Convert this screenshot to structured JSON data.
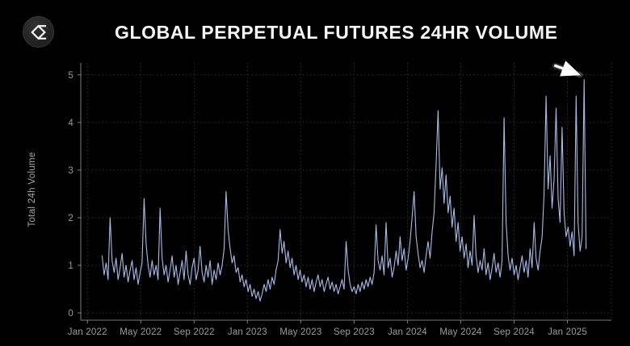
{
  "header": {
    "title": "GLOBAL PERPETUAL FUTURES 24HR VOLUME",
    "logo_icon": "velo-sigma-logo"
  },
  "chart_data": {
    "type": "line",
    "title": "GLOBAL PERPETUAL FUTURES 24HR VOLUME",
    "xlabel": "",
    "ylabel": "Total 24h Volume",
    "x_unit": "months since Jan 2022",
    "xlim": [
      0,
      36
    ],
    "ylim": [
      0,
      5
    ],
    "yticks": [
      0,
      1,
      2,
      3,
      4,
      5
    ],
    "xticks": [
      0,
      4,
      8,
      12,
      16,
      20,
      24,
      28,
      32,
      36
    ],
    "xtick_labels": [
      "Jan 2022",
      "May 2022",
      "Sep 2022",
      "Jan 2023",
      "May 2023",
      "Sep 2023",
      "Jan 2024",
      "May 2024",
      "Sep 2024",
      "Jan 2025"
    ],
    "grid": true,
    "legend": false,
    "line_color": "#a6bce9",
    "background": "#000000",
    "annotation": {
      "type": "arrow",
      "color": "#ffffff",
      "from": {
        "x": 35.1,
        "y": 5.19
      },
      "to": {
        "x": 36.95,
        "y": 5.0
      },
      "meaning": "points to final record volume spike (~4.9)"
    },
    "series": [
      {
        "name": "Total 24h Volume",
        "x_start_month": 1.1,
        "x_step_month": 0.15,
        "values": [
          1.2,
          0.8,
          1.05,
          0.7,
          2.0,
          1.1,
          0.85,
          1.15,
          0.7,
          0.95,
          1.25,
          0.75,
          1.0,
          0.65,
          0.9,
          1.1,
          0.7,
          0.95,
          0.6,
          0.85,
          1.05,
          2.4,
          1.45,
          1.0,
          0.75,
          1.1,
          0.8,
          1.0,
          0.7,
          2.2,
          1.15,
          0.8,
          1.0,
          0.65,
          0.9,
          1.2,
          0.75,
          1.0,
          0.6,
          0.85,
          1.1,
          0.7,
          1.3,
          0.8,
          0.6,
          0.95,
          1.15,
          0.7,
          0.9,
          1.4,
          0.85,
          0.65,
          1.0,
          0.75,
          1.1,
          0.6,
          0.9,
          0.7,
          1.05,
          0.8,
          1.0,
          1.35,
          2.55,
          1.75,
          1.35,
          1.05,
          1.2,
          0.85,
          0.95,
          0.65,
          0.8,
          0.55,
          0.7,
          0.45,
          0.6,
          0.35,
          0.5,
          0.3,
          0.45,
          0.25,
          0.4,
          0.6,
          0.45,
          0.7,
          0.5,
          0.75,
          0.6,
          0.9,
          1.1,
          1.75,
          1.25,
          1.5,
          1.05,
          1.3,
          0.95,
          1.15,
          0.8,
          1.0,
          0.7,
          0.9,
          0.65,
          0.8,
          0.55,
          0.75,
          0.5,
          0.7,
          0.45,
          0.65,
          0.8,
          0.55,
          0.7,
          0.45,
          0.6,
          0.75,
          0.5,
          0.65,
          0.45,
          0.6,
          0.4,
          0.55,
          0.7,
          0.5,
          1.5,
          0.9,
          0.6,
          0.45,
          0.55,
          0.4,
          0.6,
          0.45,
          0.65,
          0.5,
          0.7,
          0.55,
          0.75,
          0.6,
          0.85,
          1.85,
          1.1,
          0.9,
          1.2,
          0.8,
          1.9,
          0.95,
          1.15,
          0.75,
          0.95,
          1.3,
          1.0,
          1.6,
          1.1,
          1.35,
          0.9,
          1.15,
          1.5,
          2.0,
          2.55,
          1.6,
          1.25,
          0.95,
          1.1,
          0.85,
          1.2,
          1.5,
          1.15,
          1.7,
          2.1,
          3.1,
          4.25,
          2.6,
          3.05,
          2.3,
          2.9,
          2.1,
          2.45,
          1.8,
          2.2,
          1.5,
          1.9,
          1.3,
          1.6,
          1.15,
          1.45,
          0.95,
          1.3,
          1.0,
          2.05,
          1.2,
          0.85,
          1.1,
          0.9,
          1.35,
          0.8,
          1.05,
          0.7,
          0.95,
          1.25,
          0.85,
          1.05,
          0.75,
          1.1,
          4.1,
          1.9,
          1.2,
          0.9,
          1.15,
          0.8,
          1.0,
          0.7,
          0.95,
          1.2,
          0.85,
          1.1,
          0.75,
          1.35,
          0.95,
          1.9,
          1.15,
          0.9,
          1.3,
          1.6,
          2.5,
          4.55,
          2.6,
          3.3,
          2.2,
          2.8,
          4.3,
          2.4,
          1.9,
          3.9,
          2.1,
          1.6,
          1.8,
          1.4,
          1.7,
          1.2,
          4.55,
          1.9,
          1.3,
          1.6,
          4.9,
          1.35
        ]
      }
    ]
  }
}
